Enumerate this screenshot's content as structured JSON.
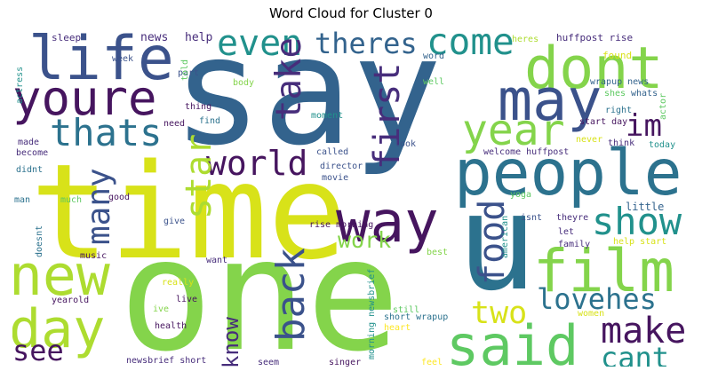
{
  "title": "Word Cloud for Cluster 0",
  "palette": {
    "dark_purple": "#46155f",
    "purple": "#472d7b",
    "indigo": "#3b528b",
    "slate_blue": "#33638d",
    "blue": "#2c728e",
    "teal": "#21918c",
    "sea_green": "#1fa088",
    "green": "#28ae80",
    "light_green": "#3fbc73",
    "lime": "#5ec962",
    "yellow_green": "#84d44b",
    "chartreuse": "#addc30",
    "yellow": "#d8e219",
    "bright_yellow": "#fde725"
  },
  "words": [
    {
      "text": "say",
      "color": "#33638d"
    },
    {
      "text": "time",
      "color": "#d8e219"
    },
    {
      "text": "one",
      "color": "#84d44b"
    },
    {
      "text": "u",
      "color": "#2c728e"
    },
    {
      "text": "people",
      "color": "#2c728e"
    },
    {
      "text": "life",
      "color": "#3b528b"
    },
    {
      "text": "youre",
      "color": "#46155f"
    },
    {
      "text": "dont",
      "color": "#84d44b"
    },
    {
      "text": "may",
      "color": "#3b528b"
    },
    {
      "text": "way",
      "color": "#46155f"
    },
    {
      "text": "new",
      "color": "#addc30"
    },
    {
      "text": "day",
      "color": "#addc30"
    },
    {
      "text": "film",
      "color": "#84d44b"
    },
    {
      "text": "said",
      "color": "#5ec962"
    },
    {
      "text": "even",
      "color": "#21918c"
    },
    {
      "text": "come",
      "color": "#21918c"
    },
    {
      "text": "thats",
      "color": "#2c728e"
    },
    {
      "text": "year",
      "color": "#84d44b"
    },
    {
      "text": "theres",
      "color": "#33638d"
    },
    {
      "text": "take",
      "color": "#472d7b"
    },
    {
      "text": "first",
      "color": "#472d7b"
    },
    {
      "text": "im",
      "color": "#46155f"
    },
    {
      "text": "world",
      "color": "#46155f"
    },
    {
      "text": "star",
      "color": "#addc30"
    },
    {
      "text": "many",
      "color": "#3b528b"
    },
    {
      "text": "show",
      "color": "#21918c"
    },
    {
      "text": "work",
      "color": "#84d44b"
    },
    {
      "text": "food",
      "color": "#3b528b"
    },
    {
      "text": "back",
      "color": "#3b528b"
    },
    {
      "text": "lovehes",
      "color": "#2c728e"
    },
    {
      "text": "make",
      "color": "#46155f"
    },
    {
      "text": "two",
      "color": "#d8e219"
    },
    {
      "text": "know",
      "color": "#472d7b"
    },
    {
      "text": "see",
      "color": "#46155f"
    },
    {
      "text": "cant",
      "color": "#21918c"
    },
    {
      "text": "little",
      "color": "#33638d"
    },
    {
      "text": "news",
      "color": "#472d7b"
    },
    {
      "text": "help",
      "color": "#472d7b"
    },
    {
      "text": "sleep",
      "color": "#472d7b"
    },
    {
      "text": "heres",
      "color": "#addc30"
    },
    {
      "text": "huffpost rise",
      "color": "#472d7b"
    },
    {
      "text": "actress",
      "color": "#21918c"
    },
    {
      "text": "week",
      "color": "#3b528b"
    },
    {
      "text": "part",
      "color": "#3b528b"
    },
    {
      "text": "told",
      "color": "#5ec962"
    },
    {
      "text": "word",
      "color": "#33638d"
    },
    {
      "text": "found",
      "color": "#d8e219"
    },
    {
      "text": "well",
      "color": "#5ec962"
    },
    {
      "text": "wrapup news",
      "color": "#33638d"
    },
    {
      "text": "shes",
      "color": "#5ec962"
    },
    {
      "text": "whats",
      "color": "#33638d"
    },
    {
      "text": "actor",
      "color": "#5ec962"
    },
    {
      "text": "body",
      "color": "#84d44b"
    },
    {
      "text": "thing",
      "color": "#46155f"
    },
    {
      "text": "right",
      "color": "#2c728e"
    },
    {
      "text": "start day",
      "color": "#46155f"
    },
    {
      "text": "moment",
      "color": "#21918c"
    },
    {
      "text": "need",
      "color": "#46155f"
    },
    {
      "text": "find",
      "color": "#2c728e"
    },
    {
      "text": "made",
      "color": "#472d7b"
    },
    {
      "text": "called",
      "color": "#3b528b"
    },
    {
      "text": "look",
      "color": "#3b528b"
    },
    {
      "text": "never",
      "color": "#d8e219"
    },
    {
      "text": "think",
      "color": "#472d7b"
    },
    {
      "text": "today",
      "color": "#21918c"
    },
    {
      "text": "become",
      "color": "#472d7b"
    },
    {
      "text": "director",
      "color": "#3b528b"
    },
    {
      "text": "welcome huffpost",
      "color": "#472d7b"
    },
    {
      "text": "didnt",
      "color": "#2c728e"
    },
    {
      "text": "movie",
      "color": "#3b528b"
    },
    {
      "text": "yoga",
      "color": "#5ec962"
    },
    {
      "text": "good",
      "color": "#46155f"
    },
    {
      "text": "man",
      "color": "#2c728e"
    },
    {
      "text": "much",
      "color": "#5ec962"
    },
    {
      "text": "isnt",
      "color": "#3b528b"
    },
    {
      "text": "theyre",
      "color": "#472d7b"
    },
    {
      "text": "let",
      "color": "#472d7b"
    },
    {
      "text": "american",
      "color": "#21918c"
    },
    {
      "text": "family",
      "color": "#472d7b"
    },
    {
      "text": "give",
      "color": "#3b528b"
    },
    {
      "text": "rise morning",
      "color": "#46155f"
    },
    {
      "text": "doesnt",
      "color": "#2c728e"
    },
    {
      "text": "help start",
      "color": "#d8e219"
    },
    {
      "text": "music",
      "color": "#46155f"
    },
    {
      "text": "want",
      "color": "#472d7b"
    },
    {
      "text": "best",
      "color": "#84d44b"
    },
    {
      "text": "morning newsbrief",
      "color": "#21918c"
    },
    {
      "text": "really",
      "color": "#d8e219"
    },
    {
      "text": "live",
      "color": "#46155f"
    },
    {
      "text": "yearold",
      "color": "#46155f"
    },
    {
      "text": "ive",
      "color": "#84d44b"
    },
    {
      "text": "still",
      "color": "#5ec962"
    },
    {
      "text": "women",
      "color": "#d8e219"
    },
    {
      "text": "short wrapup",
      "color": "#2c728e"
    },
    {
      "text": "heart",
      "color": "#fde725"
    },
    {
      "text": "health",
      "color": "#46155f"
    },
    {
      "text": "newsbrief short",
      "color": "#472d7b"
    },
    {
      "text": "seem",
      "color": "#472d7b"
    },
    {
      "text": "singer",
      "color": "#46155f"
    },
    {
      "text": "feel",
      "color": "#fde725"
    }
  ]
}
